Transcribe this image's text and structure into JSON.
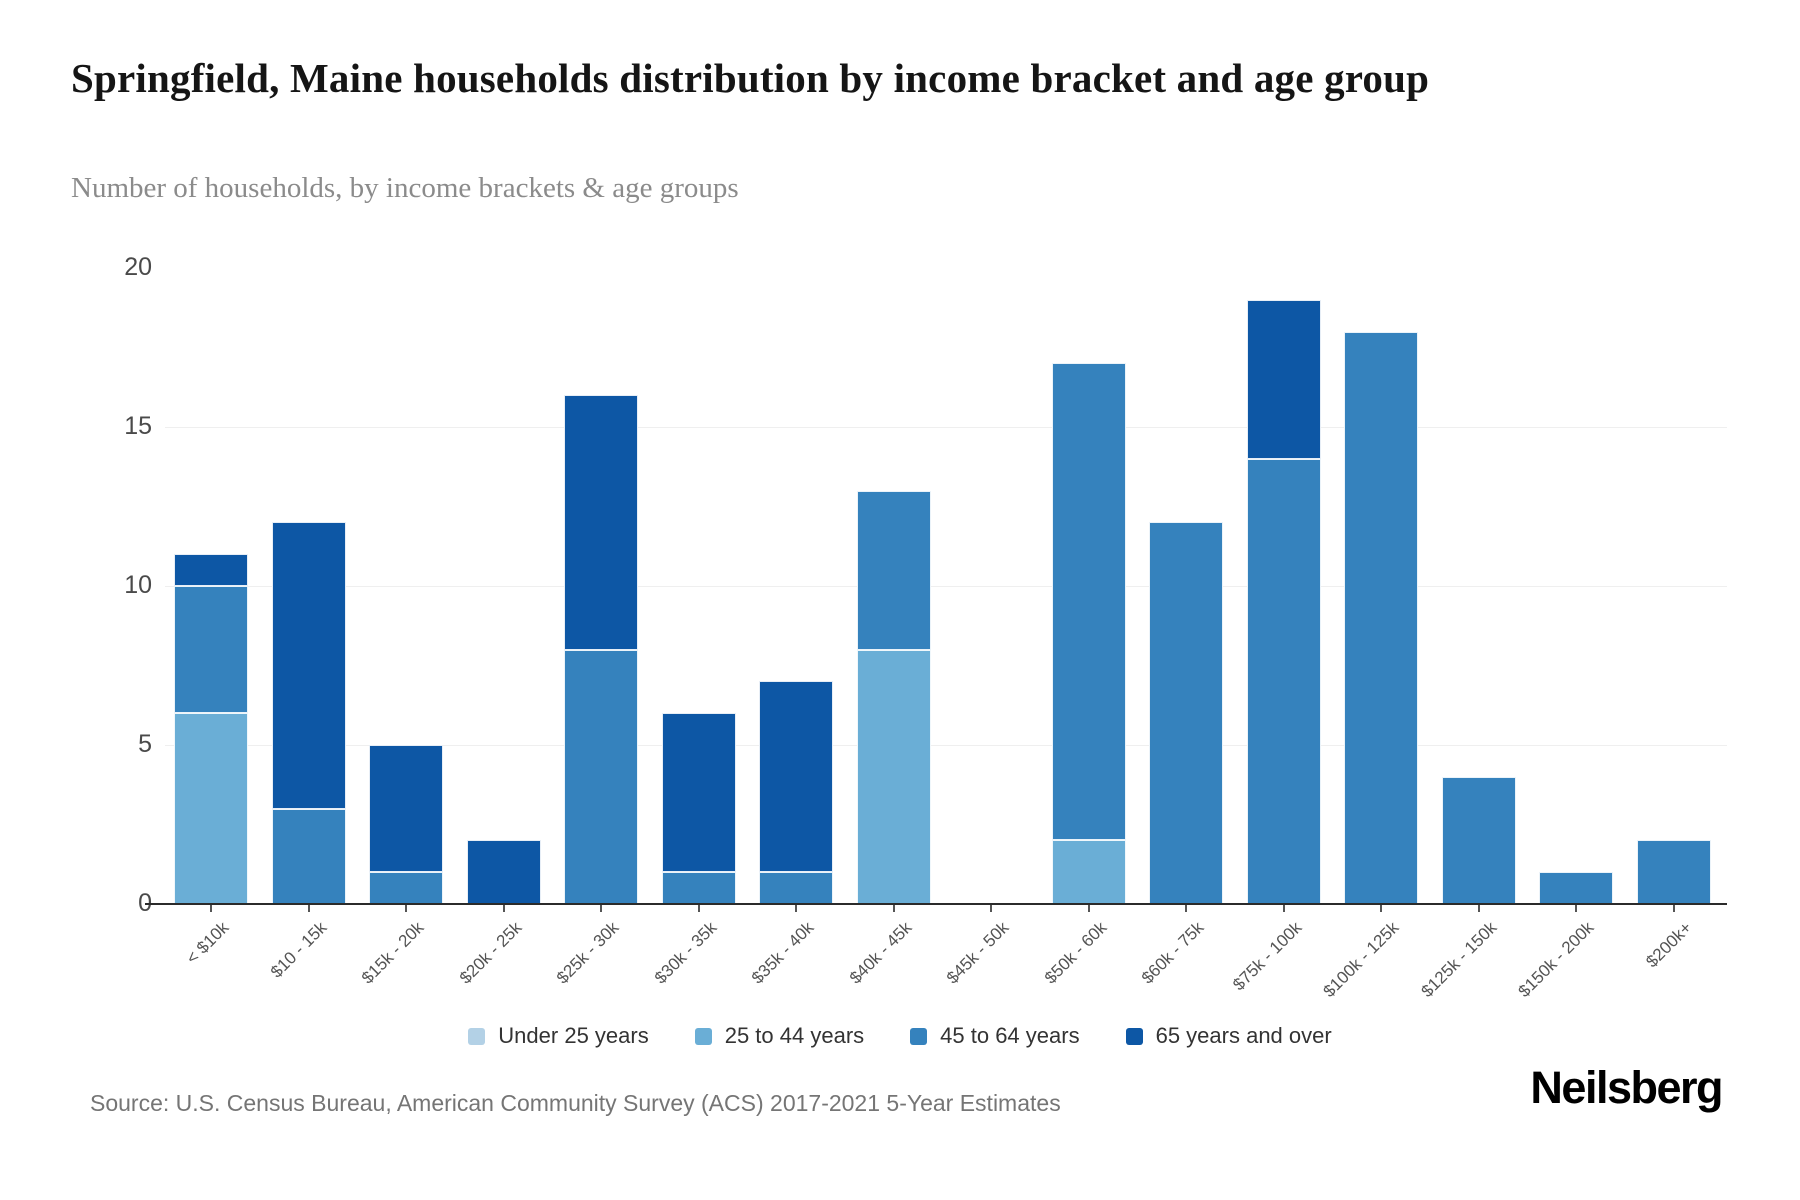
{
  "header": {
    "title": "Springfield, Maine households distribution by income bracket and age group",
    "subtitle": "Number of households, by income brackets & age groups"
  },
  "chart_data": {
    "type": "bar",
    "stacked": true,
    "title": "Springfield, Maine households distribution by income bracket and age group",
    "subtitle": "Number of households, by income brackets & age groups",
    "categories": [
      "< $10k",
      "$10 - 15k",
      "$15k - 20k",
      "$20k - 25k",
      "$25k - 30k",
      "$30k - 35k",
      "$35k - 40k",
      "$40k - 45k",
      "$45k - 50k",
      "$50k - 60k",
      "$60k - 75k",
      "$75k - 100k",
      "$100k - 125k",
      "$125k - 150k",
      "$150k - 200k",
      "$200k+"
    ],
    "series": [
      {
        "name": "Under 25 years",
        "color": "#b3d1e6",
        "values": [
          0,
          0,
          0,
          0,
          0,
          0,
          0,
          0,
          0,
          0,
          0,
          0,
          0,
          0,
          0,
          0
        ]
      },
      {
        "name": "25 to 44 years",
        "color": "#6aaed6",
        "values": [
          6,
          0,
          0,
          0,
          0,
          0,
          0,
          8,
          0,
          2,
          0,
          0,
          0,
          0,
          0,
          0
        ]
      },
      {
        "name": "45 to 64 years",
        "color": "#3582bd",
        "values": [
          4,
          3,
          1,
          0,
          8,
          1,
          1,
          5,
          0,
          15,
          12,
          14,
          18,
          4,
          1,
          2
        ]
      },
      {
        "name": "65 years and over",
        "color": "#0d57a5",
        "values": [
          1,
          9,
          4,
          2,
          8,
          5,
          6,
          0,
          0,
          0,
          0,
          5,
          0,
          0,
          0,
          0
        ]
      }
    ],
    "totals": [
      11,
      12,
      5,
      2,
      16,
      6,
      7,
      13,
      0,
      17,
      12,
      19,
      18,
      4,
      1,
      2
    ],
    "ylim": [
      0,
      20
    ],
    "yticks": [
      0,
      5,
      10,
      15,
      20
    ],
    "grid": "horizontal",
    "legend_position": "bottom"
  },
  "footer": {
    "source": "Source: U.S. Census Bureau, American Community Survey (ACS) 2017-2021 5-Year Estimates",
    "brand": "Neilsberg"
  }
}
